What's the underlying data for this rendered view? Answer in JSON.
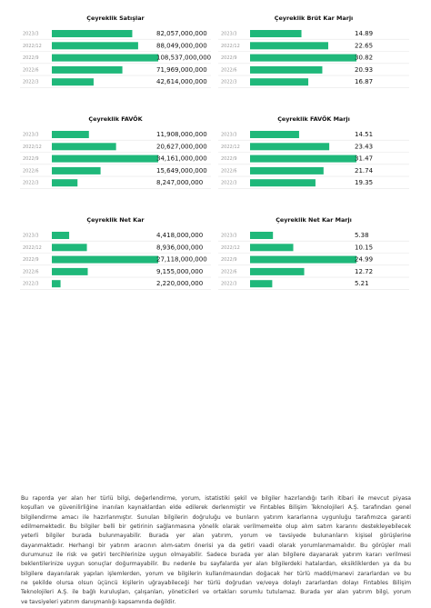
{
  "chart_data": [
    {
      "type": "barh",
      "title": "Çeyreklik Satışlar",
      "color": "#1fb87a",
      "categories": [
        "2023/3",
        "2022/12",
        "2022/9",
        "2022/6",
        "2022/3"
      ],
      "values": [
        82057000000,
        88049000000,
        108537000000,
        71969000000,
        42614000000
      ],
      "value_labels": [
        "82,057,000,000",
        "88,049,000,000",
        "108,537,000,000",
        "71,969,000,000",
        "42,614,000,000"
      ]
    },
    {
      "type": "barh",
      "title": "Çeyreklik Brüt Kar Marjı",
      "color": "#1fb87a",
      "categories": [
        "2023/3",
        "2022/12",
        "2022/9",
        "2022/6",
        "2022/3"
      ],
      "values": [
        14.89,
        22.65,
        30.82,
        20.93,
        16.87
      ]
    },
    {
      "type": "barh",
      "title": "Çeyreklik FAVÖK",
      "color": "#1fb87a",
      "categories": [
        "2023/3",
        "2022/12",
        "2022/9",
        "2022/6",
        "2022/3"
      ],
      "values": [
        11908000000,
        20627000000,
        34161000000,
        15649000000,
        8247000000
      ],
      "value_labels": [
        "11,908,000,000",
        "20,627,000,000",
        "34,161,000,000",
        "15,649,000,000",
        "8,247,000,000"
      ]
    },
    {
      "type": "barh",
      "title": "Çeyreklik FAVÖK Marjı",
      "color": "#1fb87a",
      "categories": [
        "2023/3",
        "2022/12",
        "2022/9",
        "2022/6",
        "2022/3"
      ],
      "values": [
        14.51,
        23.43,
        31.47,
        21.74,
        19.35
      ]
    },
    {
      "type": "barh",
      "title": "Çeyreklik Net Kar",
      "color": "#1fb87a",
      "categories": [
        "2023/3",
        "2022/12",
        "2022/9",
        "2022/6",
        "2022/3"
      ],
      "values": [
        4418000000,
        8936000000,
        27118000000,
        9155000000,
        2220000000
      ],
      "value_labels": [
        "4,418,000,000",
        "8,936,000,000",
        "27,118,000,000",
        "9,155,000,000",
        "2,220,000,000"
      ]
    },
    {
      "type": "barh",
      "title": "Çeyreklik Net Kar Marjı",
      "color": "#1fb87a",
      "categories": [
        "2023/3",
        "2022/12",
        "2022/9",
        "2022/6",
        "2022/3"
      ],
      "values": [
        5.38,
        10.15,
        24.99,
        12.72,
        5.21
      ]
    }
  ],
  "disclaimer": {
    "lines": [
      "Bu raporda yer alan her türlü bilgi, değerlendirme, yorum, istatistiki şekil ve bilgiler hazırlandığı tarih itibari ile mevcut piyasa",
      "koşulları ve güvenilirliğine inanılan kaynaklardan elde edilerek derlenmiştir ve Fintables Bilişim Teknolojileri A.Ş. tarafından genel",
      "bilgilendirme amacı ile hazırlanmıştır. Sunulan bilgilerin doğruluğu ve bunların yatırım kararlarına uygunluğu tarafımızca garanti",
      "edilmemektedir. Bu bilgiler belli bir getirinin sağlanmasına yönelik olarak verilmemekte olup alım satım kararını destekleyebilecek",
      "yeterli bilgiler burada bulunmayabilir. Burada yer alan yatırım, yorum ve tavsiyede bulunanların kişisel görüşlerine",
      "dayanmaktadır. Herhangi bir yatırım aracının alım-satım önerisi ya da getiri vaadi olarak yorumlanmamalıdır. Bu görüşler mali",
      "durumunuz ile risk ve getiri tercihlerinize uygun olmayabilir. Sadece burada yer alan bilgilere dayanarak yatırım kararı verilmesi",
      "beklentilerinize uygun sonuçlar doğurmayabilir. Bu nedenle bu sayfalarda yer alan bilgilerdeki hatalardan, eksikliklerden ya da bu",
      "bilgilere dayanılarak yapılan işlemlerden, yorum ve bilgilerin kullanılmasından doğacak her türlü maddi/manevi zararlardan ve bu",
      "ne şekilde olursa olsun üçüncü kişilerin uğrayabileceği her türlü doğrudan ve/veya dolaylı zararlardan dolayı Fintables Bilişim",
      "Teknolojileri A.Ş. ile bağlı kuruluşları, çalışanları, yöneticileri ve ortakları sorumlu tutulamaz. Burada yer alan yatırım bilgi, yorum",
      "ve tavsiyeleri yatırım danışmanlığı kapsamında değildir."
    ]
  }
}
